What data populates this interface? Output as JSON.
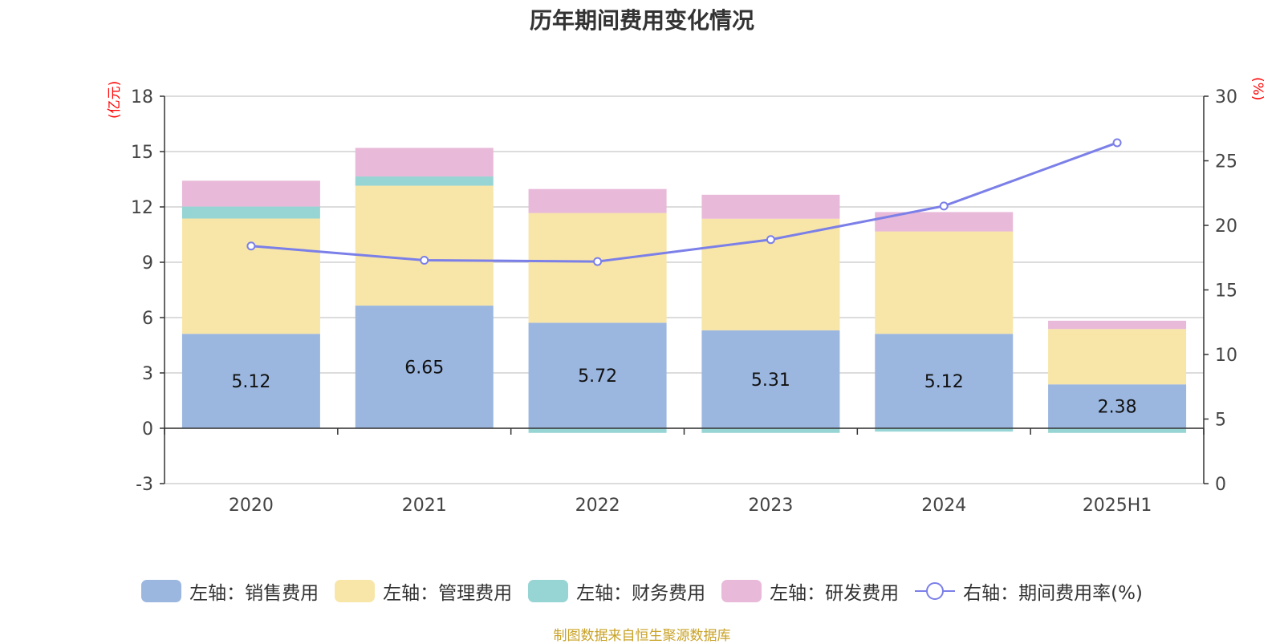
{
  "title": "历年期间费用变化情况",
  "units": {
    "left": "(亿元)",
    "right": "(%)"
  },
  "legend": [
    {
      "label": "左轴：销售费用",
      "color": "#9bb7e0"
    },
    {
      "label": "左轴：管理费用",
      "color": "#f8e6a8"
    },
    {
      "label": "左轴：财务费用",
      "color": "#97d4d4"
    },
    {
      "label": "左轴：研发费用",
      "color": "#e8b9d8"
    },
    {
      "label": "右轴：期间费用率(%)",
      "color": "#7b7fe8"
    }
  ],
  "source": "制图数据来自恒生聚源数据库",
  "chart_data": {
    "type": "bar",
    "categories": [
      "2020",
      "2021",
      "2022",
      "2023",
      "2024",
      "2025H1"
    ],
    "series": [
      {
        "name": "左轴：销售费用",
        "axis": "left",
        "color": "#9bb7e0",
        "values": [
          5.12,
          6.65,
          5.72,
          5.31,
          5.12,
          2.38
        ]
      },
      {
        "name": "左轴：管理费用",
        "axis": "left",
        "color": "#f8e6a8",
        "values": [
          6.25,
          6.5,
          5.95,
          6.05,
          5.55,
          3.0
        ]
      },
      {
        "name": "左轴：财务费用",
        "axis": "left",
        "color": "#97d4d4",
        "values": [
          0.65,
          0.5,
          -0.25,
          -0.25,
          -0.18,
          -0.25
        ]
      },
      {
        "name": "左轴：研发费用",
        "axis": "left",
        "color": "#e8b9d8",
        "values": [
          1.4,
          1.55,
          1.3,
          1.3,
          1.05,
          0.45
        ]
      },
      {
        "name": "右轴：期间费用率(%)",
        "axis": "right",
        "type": "line",
        "color": "#7b7fe8",
        "values": [
          18.4,
          17.3,
          17.2,
          18.9,
          21.5,
          26.4
        ]
      }
    ],
    "data_labels": [
      "5.12",
      "6.65",
      "5.72",
      "5.31",
      "5.12",
      "2.38"
    ],
    "left_axis": {
      "min": -3,
      "max": 18,
      "ticks": [
        "-3",
        "0",
        "3",
        "6",
        "9",
        "12",
        "15",
        "18"
      ]
    },
    "right_axis": {
      "min": 0,
      "max": 30,
      "ticks": [
        "0",
        "5",
        "10",
        "15",
        "20",
        "25",
        "30"
      ]
    },
    "grid": true,
    "stacked": true,
    "legend_position": "bottom"
  }
}
